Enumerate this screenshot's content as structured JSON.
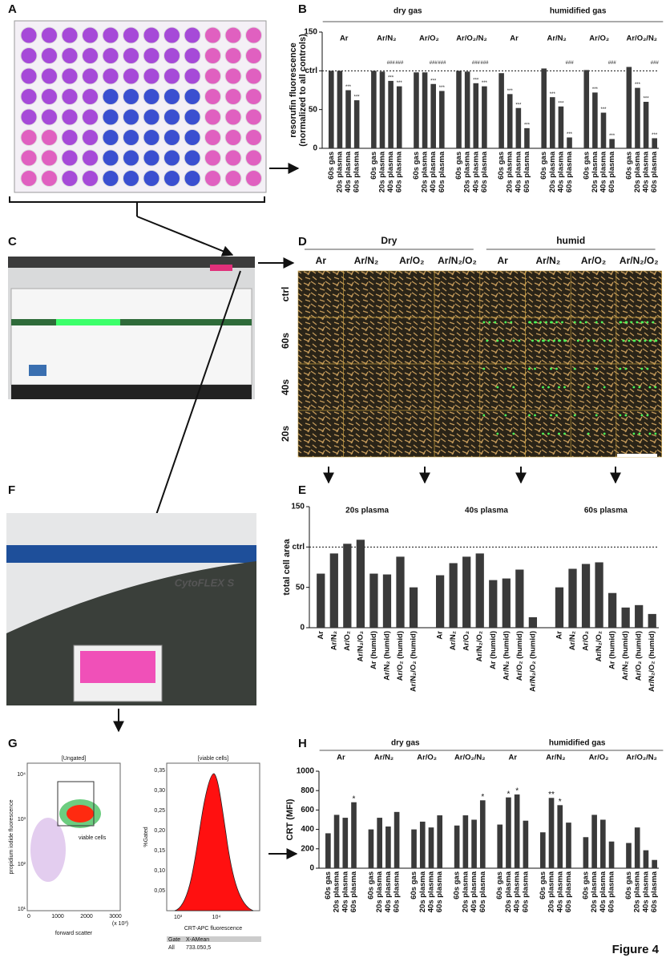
{
  "panel_labels": [
    "A",
    "B",
    "C",
    "D",
    "E",
    "F",
    "G",
    "H"
  ],
  "figure_label": "Figure 4",
  "panel_d": {
    "conditions": [
      "Dry",
      "humid"
    ],
    "columns": [
      "Ar",
      "Ar/N₂",
      "Ar/O₂",
      "Ar/N₂/O₂",
      "Ar",
      "Ar/N₂",
      "Ar/O₂",
      "Ar/N₂/O₂"
    ],
    "rows": [
      "ctrl",
      "60s",
      "40s",
      "20s"
    ]
  },
  "panel_f": {
    "instrument_label": "CytoFLEX S"
  },
  "panel_g": {
    "scatter": {
      "title": "[Ungated]",
      "y_label": "propidium iodide fluorescence",
      "x_label": "forward scatter",
      "x_unit": "(x 10³)",
      "xticks": [
        "0",
        "1000",
        "2000",
        "3000"
      ],
      "yticks": [
        "10¹",
        "10²",
        "10³",
        "10⁴"
      ],
      "gate_label": "viable cells"
    },
    "histogram": {
      "title": "[viable cells]",
      "y_label": "%Gated",
      "x_label": "CRT-APC fluorescence",
      "xticks": [
        "10³",
        "10⁴"
      ],
      "yticks": [
        "0,05",
        "0,10",
        "0,15",
        "0,20",
        "0,25",
        "0,30",
        "0,35"
      ]
    },
    "stats": {
      "header": [
        "Gate",
        "X-AMean"
      ],
      "row": [
        "All",
        "733.050,5"
      ]
    }
  },
  "chart_data": [
    {
      "type": "bar",
      "color": "#3a3a3a",
      "y_label": [
        "resorufin fluorescence",
        "(normalized to all controls)"
      ],
      "supergroups": [
        "dry gas",
        "humidified gas"
      ],
      "groups": [
        "Ar",
        "Ar/N₂",
        "Ar/O₂",
        "Ar/O₂/N₂",
        "Ar",
        "Ar/N₂",
        "Ar/O₂",
        "Ar/O₂/N₂"
      ],
      "categories": [
        "60s gas",
        "20s plasma",
        "40s plasma",
        "60s plasma",
        "60s gas",
        "20s plasma",
        "40s plasma",
        "60s plasma",
        "60s gas",
        "20s plasma",
        "40s plasma",
        "60s plasma",
        "60s gas",
        "20s plasma",
        "40s plasma",
        "60s plasma",
        "60s gas",
        "20s plasma",
        "40s plasma",
        "60s plasma",
        "60s gas",
        "20s plasma",
        "40s plasma",
        "60s plasma",
        "60s gas",
        "20s plasma",
        "40s plasma",
        "60s plasma",
        "60s gas",
        "20s plasma",
        "40s plasma",
        "60s plasma"
      ],
      "values": [
        100,
        100,
        75,
        62,
        100,
        99,
        87,
        80,
        98,
        98,
        83,
        74,
        100,
        99,
        84,
        80,
        97,
        70,
        52,
        26,
        103,
        66,
        54,
        14,
        101,
        72,
        46,
        12,
        105,
        78,
        60,
        13
      ],
      "significance_vs_gas": [
        null,
        null,
        "***",
        "***",
        null,
        null,
        "***",
        "***",
        null,
        null,
        "***",
        "***",
        null,
        null,
        "***",
        "***",
        null,
        "***",
        "***",
        "***",
        null,
        "***",
        "***",
        "***",
        null,
        "***",
        "***",
        "***",
        null,
        "***",
        "***",
        "***"
      ],
      "significance_vs_dry": [
        null,
        null,
        null,
        null,
        null,
        null,
        "###",
        "###",
        null,
        null,
        "###",
        "###",
        null,
        null,
        "###",
        "###",
        null,
        null,
        null,
        null,
        null,
        null,
        null,
        "###",
        null,
        null,
        null,
        "###",
        null,
        null,
        null,
        "###"
      ],
      "ylim": [
        0,
        150
      ],
      "yticks": [
        0,
        50,
        {
          "value": 100,
          "label": "ctrl"
        },
        150
      ]
    },
    {
      "type": "bar",
      "color": "#3a3a3a",
      "y_label": [
        "total cell area"
      ],
      "groups": [
        "20s plasma",
        "40s plasma",
        "60s plasma"
      ],
      "categories": [
        "Ar",
        "Ar/N₂",
        "Ar/O₂",
        "Ar/N₂/O₂",
        "Ar (humid)",
        "Ar/N₂ (humid)",
        "Ar/O₂ (humid)",
        "Ar/N₂/O₂ (humid)",
        "Ar",
        "Ar/N₂",
        "Ar/O₂",
        "Ar/N₂/O₂",
        "Ar (humid)",
        "Ar/N₂ (humid)",
        "Ar/O₂ (humid)",
        "Ar/N₂/O₂ (humid)",
        "Ar",
        "Ar/N₂",
        "Ar/O₂",
        "Ar/N₂/O₂",
        "Ar (humid)",
        "Ar/N₂ (humid)",
        "Ar/O₂ (humid)",
        "Ar/N₂/O₂ (humid)"
      ],
      "values": [
        67,
        92,
        104,
        109,
        67,
        66,
        88,
        50,
        65,
        80,
        88,
        92,
        59,
        61,
        72,
        13,
        50,
        73,
        79,
        81,
        43,
        25,
        28,
        17
      ],
      "ylim": [
        0,
        150
      ],
      "yticks": [
        0,
        50,
        {
          "value": 100,
          "label": "ctrl"
        },
        150
      ]
    },
    {
      "type": "bar",
      "color": "#3a3a3a",
      "y_label": [
        "CRT  (MFI)"
      ],
      "supergroups": [
        "dry gas",
        "humidified gas"
      ],
      "groups": [
        "Ar",
        "Ar/N₂",
        "Ar/O₂",
        "Ar/O₂/N₂",
        "Ar",
        "Ar/N₂",
        "Ar/O₂",
        "Ar/O₂/N₂"
      ],
      "categories": [
        "60s gas",
        "20s plasma",
        "40s plasma",
        "60s plasma",
        "60s gas",
        "20s plasma",
        "40s plasma",
        "60s plasma",
        "60s gas",
        "20s plasma",
        "40s plasma",
        "60s plasma",
        "60s gas",
        "20s plasma",
        "40s plasma",
        "60s plasma",
        "60s gas",
        "20s plasma",
        "40s plasma",
        "60s plasma",
        "60s gas",
        "20s plasma",
        "40s plasma",
        "60s plasma",
        "60s gas",
        "20s plasma",
        "40s plasma",
        "60s plasma",
        "60s gas",
        "20s plasma",
        "40s plasma",
        "60s plasma"
      ],
      "values": [
        360,
        550,
        520,
        680,
        400,
        520,
        430,
        580,
        400,
        480,
        420,
        545,
        440,
        545,
        500,
        700,
        450,
        730,
        760,
        490,
        370,
        725,
        650,
        470,
        320,
        550,
        500,
        275,
        260,
        420,
        185,
        85
      ],
      "significance_vs_gas": [
        null,
        null,
        null,
        "*",
        null,
        null,
        null,
        null,
        null,
        null,
        null,
        null,
        null,
        null,
        null,
        "*",
        null,
        "*",
        "*",
        null,
        null,
        "**",
        "*",
        null,
        null,
        null,
        null,
        null,
        null,
        null,
        null,
        null
      ],
      "ylim": [
        0,
        1000
      ],
      "yticks": [
        0,
        200,
        400,
        600,
        800,
        1000
      ]
    }
  ]
}
